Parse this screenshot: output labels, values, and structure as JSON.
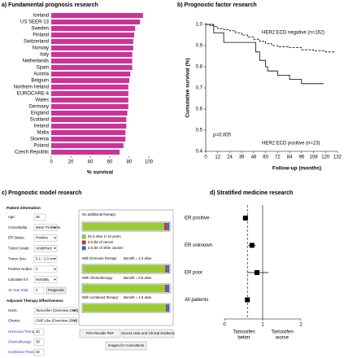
{
  "chart_data": [
    {
      "type": "hbar",
      "title": "a) Fundamental prognosis research",
      "categories": [
        "Iceland",
        "US SEER-13",
        "Sweden",
        "Finland",
        "Switzerland",
        "Norway",
        "Italy",
        "Netherlands",
        "Spain",
        "Austria",
        "Belgium",
        "Northern Ireland",
        "EUROCARE-4",
        "Wales",
        "Germany",
        "England",
        "Scotland",
        "Ireland",
        "Malta",
        "Slovenia",
        "Poland",
        "Czech Republic"
      ],
      "values": [
        94,
        91,
        86,
        85,
        84,
        84,
        83,
        83,
        83,
        81,
        80,
        79,
        79,
        79,
        79,
        78,
        77,
        77,
        76,
        76,
        74,
        70
      ],
      "color": "#cc3399",
      "xlim": [
        0,
        100
      ],
      "xticks": [
        0,
        20,
        40,
        60,
        80,
        100
      ],
      "xlabel": "% survival"
    },
    {
      "type": "survival",
      "title": "b) Prognostic factor research",
      "xlabel": "Follow-up (months)",
      "ylabel": "Cumulative survival (%)",
      "xlim": [
        0,
        132
      ],
      "xticks": [
        0,
        12,
        24,
        36,
        48,
        60,
        72,
        84,
        96,
        108,
        120,
        132
      ],
      "ylim": [
        0.4,
        1
      ],
      "yticks": [
        0.4,
        0.5,
        0.6,
        0.7,
        0.8,
        0.9,
        {
          "value": 1,
          "label": "1.0"
        }
      ],
      "annotation": "p=0.005",
      "series": [
        {
          "name": "HER2 ECD negative (n=162)",
          "color": "#000000",
          "dashed": true,
          "x": [
            0,
            4,
            8,
            12,
            18,
            24,
            30,
            36,
            42,
            48,
            54,
            60,
            66,
            72,
            84,
            96,
            108,
            120,
            130
          ],
          "values": [
            1,
            0.995,
            0.99,
            0.98,
            0.975,
            0.97,
            0.96,
            0.95,
            0.94,
            0.93,
            0.92,
            0.91,
            0.9,
            0.895,
            0.89,
            0.88,
            0.875,
            0.87,
            0.87
          ]
        },
        {
          "name": "HER2 ECD positive (n=23)",
          "color": "#000000",
          "dashed": false,
          "x": [
            0,
            8,
            18,
            50,
            54,
            60,
            62,
            72,
            84,
            96,
            108,
            118
          ],
          "values": [
            1,
            0.96,
            0.915,
            0.87,
            0.83,
            0.8,
            0.78,
            0.76,
            0.74,
            0.72,
            0.72,
            0.72
          ]
        }
      ]
    },
    {
      "type": "forest",
      "title": "d) Stratified medicine research",
      "categories": [
        "ER positive",
        "ER unknown",
        "ER poor",
        "All patients"
      ],
      "values": [
        0.55,
        0.72,
        0.85,
        0.6
      ],
      "lower": [
        0.48,
        0.62,
        0.6,
        0.55
      ],
      "upper": [
        0.62,
        0.82,
        1.15,
        0.66
      ],
      "xlim": [
        0,
        2
      ],
      "xticks": [
        0,
        1,
        2
      ],
      "xlabels": [
        [
          "Tamoxifen",
          "better"
        ],
        [
          "Tamoxifen",
          "worse"
        ]
      ]
    }
  ],
  "panel_c": {
    "title": "c) Prognostic model research",
    "patient_info": {
      "heading": "Patient information",
      "fields": [
        {
          "label": "Age:",
          "value": "46"
        },
        {
          "label": "Comorbidity:",
          "value": "Minor Problems"
        },
        {
          "label": "ER Status:",
          "value": "Positive"
        },
        {
          "label": "Tumor Grade:",
          "value": "Undefined"
        },
        {
          "label": "Tumor Size:",
          "value": "0.1 - 1.0 cm"
        },
        {
          "label": "Positive Nodes:",
          "value": "0"
        },
        {
          "label": "Calculate for:",
          "value": "Mortality"
        }
      ]
    },
    "risk": {
      "label": "10 Year Risk:",
      "value": "3",
      "button": "Prognostic"
    },
    "therapy": {
      "heading": "Adjuvant Therapy Effectiveness",
      "selects": [
        {
          "label": "Horm:",
          "value": "Tamoxifen (Overview 2000)"
        },
        {
          "label": "Chemo:",
          "value": "CMF-Like (Overview 2000)"
        }
      ],
      "results": [
        {
          "label": "Hormonal Therapy:",
          "value": "32"
        },
        {
          "label": "Chemotherapy:",
          "value": "30"
        },
        {
          "label": "Combined Therapy:",
          "value": "32"
        }
      ]
    },
    "outcome": {
      "colors": [
        "#99cc33",
        "#cc3333",
        "#3366cc"
      ],
      "legend": [
        "94.4 alive in 10 years",
        "3.0 die of cancer",
        "2.6 die of other causes"
      ],
      "rows": [
        {
          "label": "No additional therapy:",
          "segments": [
            94.4,
            3.0,
            2.6
          ]
        },
        {
          "label": "With hormone therapy:",
          "benefit": "Benefit = 1.0 alive",
          "segments": [
            95.4,
            2.0,
            2.6
          ]
        },
        {
          "label": "With chemotherapy:",
          "benefit": "Benefit = 0.9 alive",
          "segments": [
            95.3,
            2.1,
            2.6
          ]
        },
        {
          "label": "With combined therapy:",
          "benefit": "Benefit = 1.6 alive",
          "segments": [
            96.0,
            1.4,
            2.6
          ]
        }
      ]
    },
    "buttons": [
      "Print Results PDF",
      "Access Help and Clinical Evidence",
      "Images for Consultants"
    ]
  }
}
